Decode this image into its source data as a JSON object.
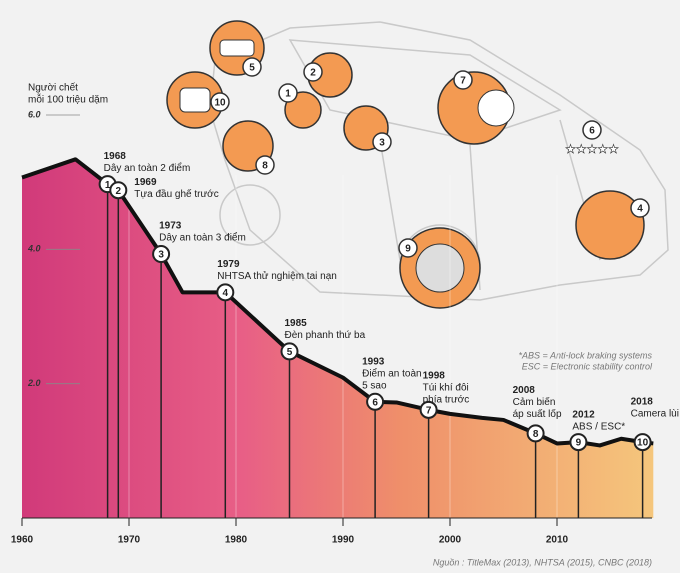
{
  "chart_data": {
    "type": "area",
    "y_axis_title": [
      "Người chết",
      "mỗi 100 triệu dặm"
    ],
    "x": [
      1960,
      1965,
      1968,
      1969,
      1973,
      1975,
      1979,
      1985,
      1990,
      1993,
      1995,
      1998,
      2000,
      2003,
      2005,
      2008,
      2010,
      2012,
      2014,
      2016,
      2018,
      2019
    ],
    "series": [
      {
        "values": [
          5.07,
          5.34,
          4.97,
          4.88,
          3.93,
          3.36,
          3.36,
          2.48,
          2.09,
          1.73,
          1.72,
          1.61,
          1.55,
          1.49,
          1.46,
          1.26,
          1.11,
          1.13,
          1.08,
          1.18,
          1.13,
          1.11
        ],
        "color": "#111111"
      }
    ],
    "xlim": [
      1960,
      2020
    ],
    "ylim": [
      0,
      6
    ],
    "xticks": [
      1960,
      1970,
      1980,
      1990,
      2000,
      2010
    ],
    "yticks": [
      {
        "value": 2,
        "label": "2.0"
      },
      {
        "value": 4,
        "label": "4.0"
      },
      {
        "value": 6,
        "label": "6.0"
      }
    ],
    "milestones": [
      {
        "number": "1",
        "year": 1968,
        "value": 4.97,
        "label": [
          "Dây an toàn 2 điểm"
        ]
      },
      {
        "number": "2",
        "year": 1969,
        "value": 4.88,
        "label": [
          "Tựa đầu ghế trước"
        ]
      },
      {
        "number": "3",
        "year": 1973,
        "value": 3.93,
        "label": [
          "Dây an toàn 3 điểm"
        ]
      },
      {
        "number": "4",
        "year": 1979,
        "value": 3.36,
        "label": [
          "NHTSA thử nghiệm tai nạn"
        ]
      },
      {
        "number": "5",
        "year": 1985,
        "value": 2.48,
        "label": [
          "Đèn phanh thứ ba"
        ]
      },
      {
        "number": "6",
        "year": 1993,
        "value": 1.73,
        "label": [
          "Điểm an toàn",
          "5 sao"
        ]
      },
      {
        "number": "7",
        "year": 1998,
        "value": 1.61,
        "label": [
          "Túi khí đôi",
          "phía trước"
        ]
      },
      {
        "number": "8",
        "year": 2008,
        "value": 1.26,
        "label": [
          "Cảm biến",
          "áp suất lốp"
        ]
      },
      {
        "number": "9",
        "year": 2012,
        "value": 1.13,
        "label": [
          "ABS / ESC*"
        ]
      },
      {
        "number": "10",
        "year": 2018,
        "value": 1.13,
        "label": [
          "Camera lùi"
        ]
      }
    ],
    "notes": [
      "*ABS = Anti-lock braking systems",
      "ESC = Electronic stability control"
    ],
    "source": "Nguồn : TitleMax (2013), NHTSA (2015), CNBC (2018)"
  }
}
